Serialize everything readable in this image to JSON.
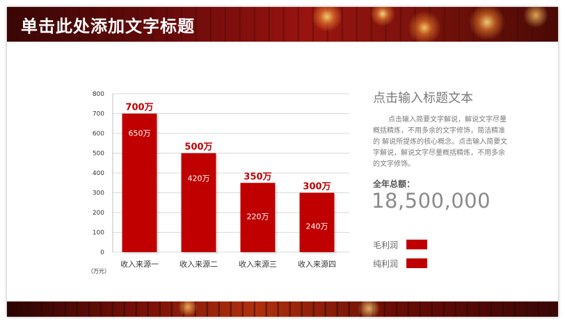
{
  "header": {
    "title": "单击此处添加文字标题"
  },
  "chart_data": {
    "type": "bar",
    "categories": [
      "收入来源一",
      "收入来源二",
      "收入来源三",
      "收入来源四"
    ],
    "values": [
      700,
      500,
      350,
      300
    ],
    "top_labels": [
      "700万",
      "500万",
      "350万",
      "300万"
    ],
    "inner_labels": [
      "650万",
      "420万",
      "220万",
      "240万"
    ],
    "yticks": [
      0,
      100,
      200,
      300,
      400,
      500,
      600,
      700,
      800
    ],
    "ylim": [
      0,
      800
    ],
    "y_unit": "（万元）",
    "grid": true,
    "bar_color": "#c00000"
  },
  "side": {
    "title": "点击输入标题文本",
    "body": "点击输入简要文字解说，解说文字尽量概括精炼，不用多余的文字修饰，简洁精准的  解说所提炼的核心概念。点击输入简要文字解说，解说文字尽量概括精炼，不用多余的文字修饰。",
    "total_label": "全年总额：",
    "total_value": "18,500,000"
  },
  "legend": [
    {
      "label": "毛利润",
      "color": "#c00000"
    },
    {
      "label": "纯利润",
      "color": "#c00000"
    }
  ]
}
